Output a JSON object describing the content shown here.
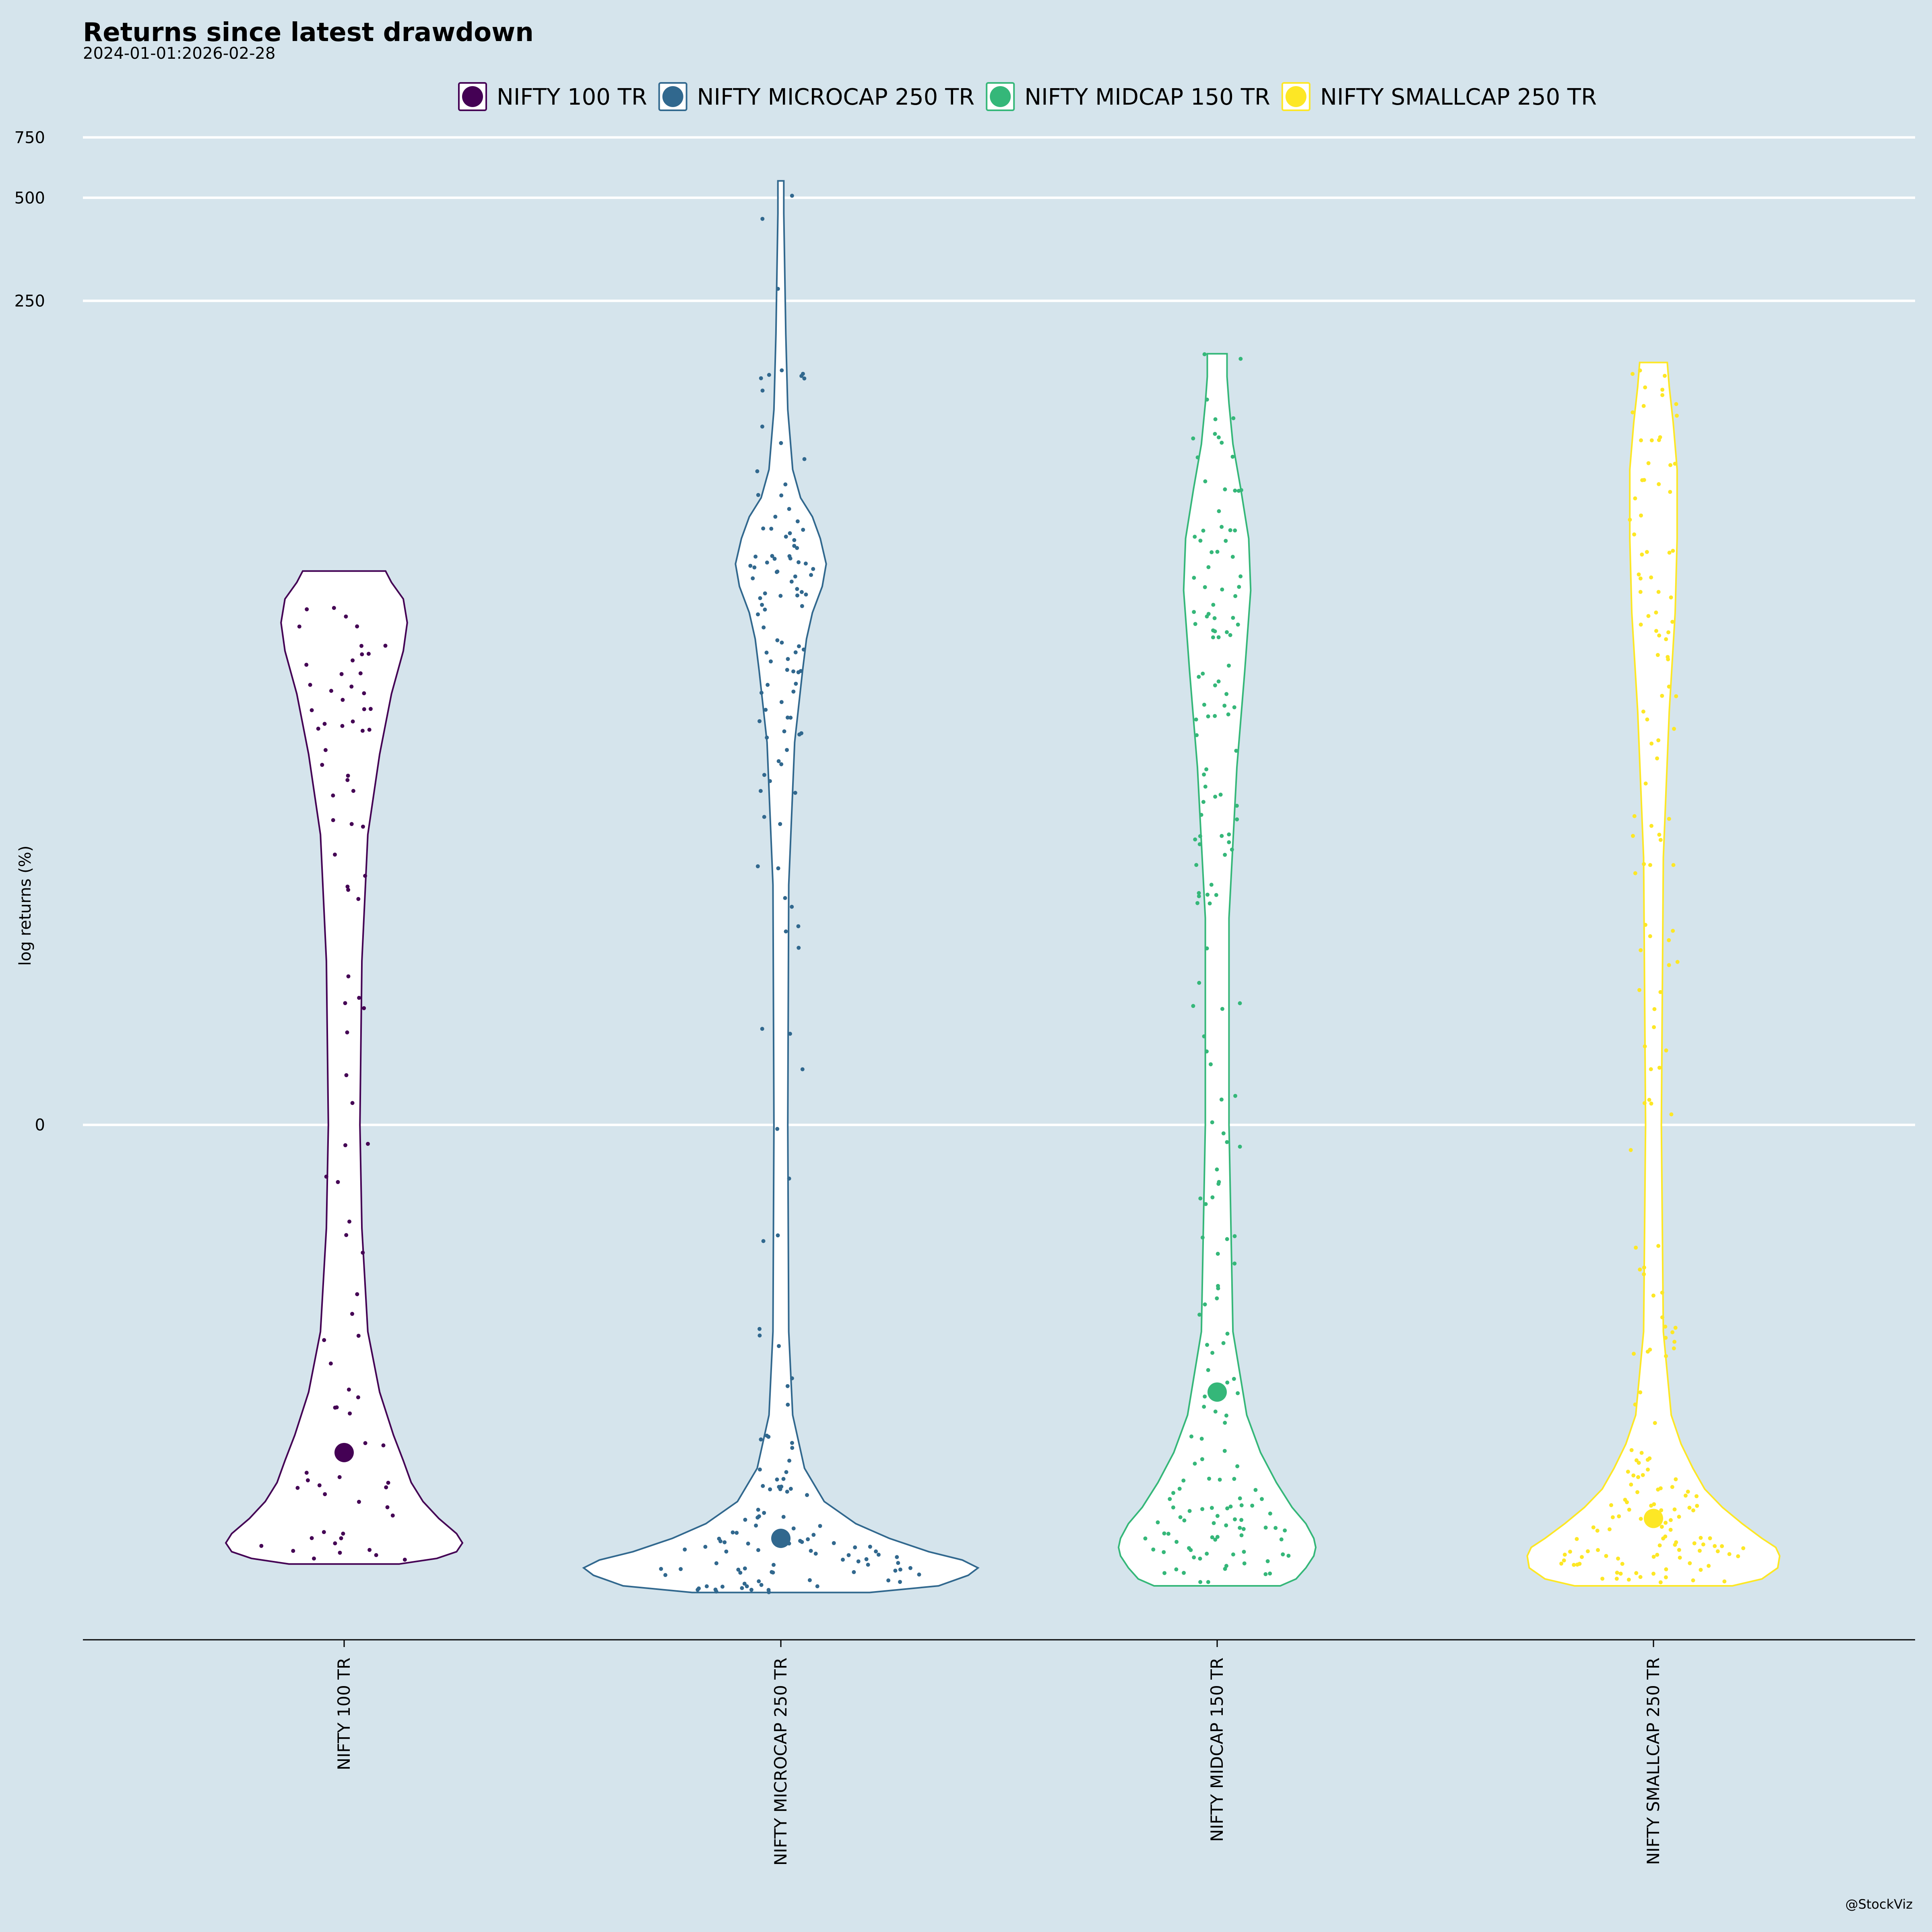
{
  "chart_data": {
    "type": "violin",
    "title": "Returns since latest drawdown",
    "subtitle": "2024-01-01:2026-02-28",
    "ylabel": "log returns (%)",
    "xlabel": "",
    "y_scale": "log",
    "y_ticks": [
      {
        "value": 0,
        "label": "0"
      },
      {
        "value": 250,
        "label": "250"
      },
      {
        "value": 500,
        "label": "500"
      },
      {
        "value": 750,
        "label": "750"
      }
    ],
    "ylim": [
      -21,
      640
    ],
    "grid": "horizontal",
    "legend_position": "top",
    "caption": "@StockViz",
    "categories": [
      "NIFTY 100 TR",
      "NIFTY MICROCAP 250 TR",
      "NIFTY MIDCAP 150 TR",
      "NIFTY SMALLCAP 250 TR"
    ],
    "series": [
      {
        "name": "NIFTY 100 TR",
        "color": "#440154",
        "median": -8,
        "min": -18,
        "max": 40,
        "profile": [
          [
            -18,
            0.28
          ],
          [
            -17.3,
            0.47
          ],
          [
            -16.5,
            0.57
          ],
          [
            -15.5,
            0.6
          ],
          [
            -14.5,
            0.57
          ],
          [
            -13,
            0.48
          ],
          [
            -11.5,
            0.4
          ],
          [
            -10,
            0.34
          ],
          [
            -8.5,
            0.3
          ],
          [
            -7,
            0.25
          ],
          [
            -5,
            0.18
          ],
          [
            -3,
            0.12
          ],
          [
            -1,
            0.09
          ],
          [
            0,
            0.08
          ],
          [
            2,
            0.09
          ],
          [
            6,
            0.12
          ],
          [
            11,
            0.18
          ],
          [
            17,
            0.24
          ],
          [
            23,
            0.3
          ],
          [
            28,
            0.32
          ],
          [
            33,
            0.3
          ],
          [
            37,
            0.24
          ],
          [
            40,
            0.21
          ]
        ]
      },
      {
        "name": "NIFTY MICROCAP 250 TR",
        "color": "#31688e",
        "median": -15,
        "min": -22,
        "max": 560,
        "profile": [
          [
            -22,
            0.45
          ],
          [
            -21,
            0.8
          ],
          [
            -19.5,
            0.95
          ],
          [
            -18.5,
            1.0
          ],
          [
            -17.5,
            0.92
          ],
          [
            -16.5,
            0.75
          ],
          [
            -15,
            0.55
          ],
          [
            -13.5,
            0.38
          ],
          [
            -11.5,
            0.22
          ],
          [
            -9,
            0.12
          ],
          [
            -6,
            0.06
          ],
          [
            -3,
            0.04
          ],
          [
            0,
            0.035
          ],
          [
            4,
            0.04
          ],
          [
            12,
            0.07
          ],
          [
            20,
            0.11
          ],
          [
            25,
            0.13
          ],
          [
            30,
            0.16
          ],
          [
            36,
            0.21
          ],
          [
            42,
            0.23
          ],
          [
            50,
            0.2
          ],
          [
            58,
            0.16
          ],
          [
            66,
            0.1
          ],
          [
            80,
            0.06
          ],
          [
            120,
            0.035
          ],
          [
            200,
            0.025
          ],
          [
            300,
            0.02
          ],
          [
            450,
            0.015
          ],
          [
            560,
            0.015
          ]
        ]
      },
      {
        "name": "NIFTY MIDCAP 150 TR",
        "color": "#35b779",
        "median": -5,
        "min": -21,
        "max": 175,
        "profile": [
          [
            -21,
            0.32
          ],
          [
            -20,
            0.4
          ],
          [
            -18.5,
            0.45
          ],
          [
            -17,
            0.49
          ],
          [
            -16,
            0.5
          ],
          [
            -15,
            0.49
          ],
          [
            -13.5,
            0.45
          ],
          [
            -12,
            0.38
          ],
          [
            -10,
            0.3
          ],
          [
            -8,
            0.22
          ],
          [
            -6,
            0.15
          ],
          [
            -3,
            0.08
          ],
          [
            0,
            0.06
          ],
          [
            3,
            0.06
          ],
          [
            10,
            0.1
          ],
          [
            20,
            0.14
          ],
          [
            35,
            0.17
          ],
          [
            50,
            0.16
          ],
          [
            70,
            0.12
          ],
          [
            95,
            0.08
          ],
          [
            125,
            0.06
          ],
          [
            150,
            0.05
          ],
          [
            175,
            0.05
          ]
        ]
      },
      {
        "name": "NIFTY SMALLCAP 250 TR",
        "color": "#fde725",
        "median": -13,
        "min": -21,
        "max": 165,
        "profile": [
          [
            -21,
            0.4
          ],
          [
            -20,
            0.55
          ],
          [
            -18.5,
            0.63
          ],
          [
            -17,
            0.64
          ],
          [
            -16,
            0.62
          ],
          [
            -15,
            0.55
          ],
          [
            -13.5,
            0.45
          ],
          [
            -12,
            0.35
          ],
          [
            -10.5,
            0.26
          ],
          [
            -9,
            0.2
          ],
          [
            -7.5,
            0.14
          ],
          [
            -6,
            0.09
          ],
          [
            -3,
            0.05
          ],
          [
            0,
            0.04
          ],
          [
            5,
            0.05
          ],
          [
            15,
            0.08
          ],
          [
            30,
            0.11
          ],
          [
            50,
            0.12
          ],
          [
            80,
            0.12
          ],
          [
            110,
            0.1
          ],
          [
            140,
            0.08
          ],
          [
            165,
            0.07
          ]
        ]
      }
    ]
  }
}
